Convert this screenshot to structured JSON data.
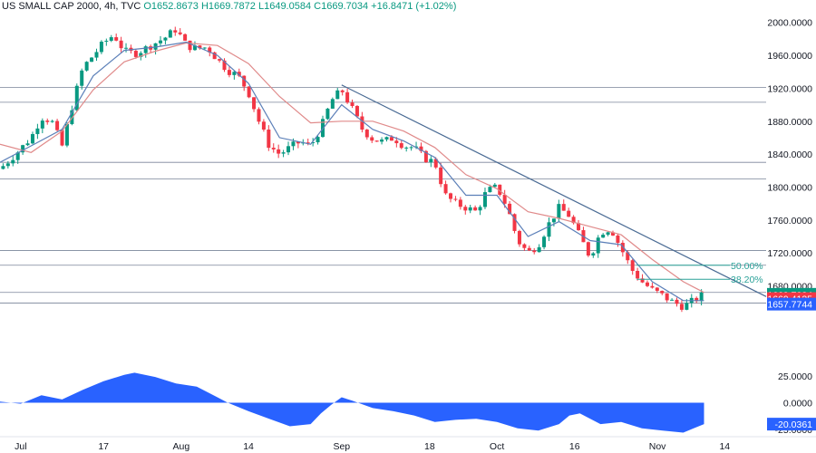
{
  "header": {
    "symbol": "US SMALL CAP 2000, 4h, TVC",
    "open": "O1652.8673",
    "high": "H1669.7872",
    "low": "L1649.0584",
    "close": "C1669.7034",
    "change": "+16.8471 (+1.02%)"
  },
  "chart_data": {
    "type": "candlestick",
    "main_y_range": [
      1620,
      2003
    ],
    "price_ticks": [
      "2000.0000",
      "1960.0000",
      "1920.0000",
      "1880.0000",
      "1840.0000",
      "1800.0000",
      "1760.0000",
      "1720.0000",
      "1680.0000"
    ],
    "date_ticks": [
      {
        "label": "Jul",
        "day": 0
      },
      {
        "label": "17",
        "day": 16
      },
      {
        "label": "Aug",
        "day": 31
      },
      {
        "label": "14",
        "day": 44
      },
      {
        "label": "Sep",
        "day": 62
      },
      {
        "label": "18",
        "day": 79
      },
      {
        "label": "Oct",
        "day": 92
      },
      {
        "label": "16",
        "day": 107
      },
      {
        "label": "Nov",
        "day": 123
      },
      {
        "label": "14",
        "day": 136
      }
    ],
    "day_range": [
      -4,
      144
    ],
    "close_path": [
      [
        -4,
        1822
      ],
      [
        -1,
        1840
      ],
      [
        2,
        1860
      ],
      [
        4,
        1885
      ],
      [
        6,
        1880
      ],
      [
        8,
        1850
      ],
      [
        10,
        1900
      ],
      [
        12,
        1945
      ],
      [
        14,
        1960
      ],
      [
        16,
        1975
      ],
      [
        18,
        1985
      ],
      [
        20,
        1965
      ],
      [
        22,
        1962
      ],
      [
        24,
        1968
      ],
      [
        26,
        1975
      ],
      [
        28,
        1982
      ],
      [
        30,
        1992
      ],
      [
        32,
        1972
      ],
      [
        34,
        1968
      ],
      [
        36,
        1970
      ],
      [
        38,
        1955
      ],
      [
        40,
        1942
      ],
      [
        42,
        1935
      ],
      [
        44,
        1915
      ],
      [
        46,
        1880
      ],
      [
        48,
        1850
      ],
      [
        50,
        1840
      ],
      [
        52,
        1848
      ],
      [
        54,
        1855
      ],
      [
        56,
        1850
      ],
      [
        58,
        1872
      ],
      [
        60,
        1905
      ],
      [
        62,
        1918
      ],
      [
        64,
        1895
      ],
      [
        66,
        1870
      ],
      [
        68,
        1858
      ],
      [
        70,
        1855
      ],
      [
        72,
        1860
      ],
      [
        74,
        1850
      ],
      [
        76,
        1848
      ],
      [
        78,
        1835
      ],
      [
        80,
        1830
      ],
      [
        82,
        1790
      ],
      [
        84,
        1780
      ],
      [
        86,
        1775
      ],
      [
        88,
        1770
      ],
      [
        90,
        1795
      ],
      [
        92,
        1800
      ],
      [
        94,
        1775
      ],
      [
        96,
        1735
      ],
      [
        98,
        1720
      ],
      [
        100,
        1730
      ],
      [
        102,
        1755
      ],
      [
        104,
        1775
      ],
      [
        106,
        1765
      ],
      [
        108,
        1740
      ],
      [
        110,
        1715
      ],
      [
        112,
        1745
      ],
      [
        114,
        1750
      ],
      [
        116,
        1725
      ],
      [
        118,
        1700
      ],
      [
        120,
        1685
      ],
      [
        122,
        1675
      ],
      [
        124,
        1668
      ],
      [
        126,
        1660
      ],
      [
        128,
        1655
      ],
      [
        130,
        1662
      ],
      [
        132,
        1669.7
      ]
    ],
    "ema_fast": [
      [
        -4,
        1830
      ],
      [
        2,
        1850
      ],
      [
        8,
        1870
      ],
      [
        14,
        1935
      ],
      [
        20,
        1966
      ],
      [
        26,
        1970
      ],
      [
        32,
        1976
      ],
      [
        38,
        1960
      ],
      [
        44,
        1926
      ],
      [
        50,
        1860
      ],
      [
        56,
        1852
      ],
      [
        62,
        1900
      ],
      [
        68,
        1870
      ],
      [
        74,
        1856
      ],
      [
        80,
        1836
      ],
      [
        86,
        1790
      ],
      [
        92,
        1790
      ],
      [
        98,
        1740
      ],
      [
        104,
        1758
      ],
      [
        110,
        1735
      ],
      [
        116,
        1730
      ],
      [
        122,
        1685
      ],
      [
        128,
        1662
      ],
      [
        132,
        1662
      ]
    ],
    "ema_slow": [
      [
        -4,
        1852
      ],
      [
        2,
        1842
      ],
      [
        8,
        1868
      ],
      [
        14,
        1918
      ],
      [
        20,
        1952
      ],
      [
        26,
        1965
      ],
      [
        32,
        1975
      ],
      [
        38,
        1972
      ],
      [
        44,
        1950
      ],
      [
        50,
        1910
      ],
      [
        56,
        1878
      ],
      [
        62,
        1880
      ],
      [
        68,
        1880
      ],
      [
        74,
        1868
      ],
      [
        80,
        1848
      ],
      [
        86,
        1815
      ],
      [
        92,
        1798
      ],
      [
        98,
        1770
      ],
      [
        104,
        1762
      ],
      [
        110,
        1752
      ],
      [
        116,
        1742
      ],
      [
        122,
        1712
      ],
      [
        128,
        1685
      ],
      [
        132,
        1672
      ]
    ],
    "horizontal_levels": [
      1921,
      1903,
      1830,
      1810,
      1723,
      1705,
      1672,
      1659
    ],
    "trendline": [
      [
        62,
        1924
      ],
      [
        144,
        1667
      ]
    ],
    "fibonacci": [
      {
        "label": "50.00%",
        "price": 1705,
        "day_start": 119,
        "day_end": 137
      },
      {
        "label": "38.20%",
        "price": 1688,
        "day_start": 119,
        "day_end": 137
      }
    ],
    "price_tags": [
      {
        "text": "1669.7034",
        "price": 1669.7,
        "color": "#089981"
      },
      {
        "text": "1669.4135",
        "price": 1664.5,
        "color": "#f23645"
      },
      {
        "text": "1657.7744",
        "price": 1657.8,
        "color": "#2962ff"
      }
    ],
    "oscillator": {
      "range": [
        -25,
        30
      ],
      "ticks": [
        "25.0000",
        "0.0000",
        "-25.0000"
      ],
      "last_value_tag": "-20.0361",
      "last_value": -20.0361,
      "values": [
        [
          -4,
          1
        ],
        [
          0,
          -1
        ],
        [
          4,
          7
        ],
        [
          8,
          3
        ],
        [
          12,
          12
        ],
        [
          16,
          20
        ],
        [
          20,
          26
        ],
        [
          22,
          28
        ],
        [
          26,
          24
        ],
        [
          30,
          18
        ],
        [
          34,
          15
        ],
        [
          38,
          5
        ],
        [
          40,
          0
        ],
        [
          44,
          -8
        ],
        [
          48,
          -15
        ],
        [
          52,
          -22
        ],
        [
          56,
          -20
        ],
        [
          58,
          -10
        ],
        [
          60,
          -2
        ],
        [
          62,
          5
        ],
        [
          64,
          2
        ],
        [
          68,
          -5
        ],
        [
          72,
          -8
        ],
        [
          76,
          -12
        ],
        [
          80,
          -18
        ],
        [
          84,
          -16
        ],
        [
          88,
          -15
        ],
        [
          92,
          -18
        ],
        [
          96,
          -24
        ],
        [
          100,
          -26
        ],
        [
          104,
          -20
        ],
        [
          106,
          -12
        ],
        [
          108,
          -10
        ],
        [
          112,
          -20
        ],
        [
          116,
          -18
        ],
        [
          120,
          -24
        ],
        [
          124,
          -26
        ],
        [
          128,
          -28
        ],
        [
          132,
          -20
        ]
      ],
      "color": "#2962ff"
    },
    "colors": {
      "up": "#089981",
      "down": "#f23645",
      "ema_fast": "#5b7fb8",
      "ema_slow": "#e08a8a",
      "trendline": "#4a6b94",
      "levels": "#7a8599",
      "grid": "#f0f3fa"
    }
  }
}
